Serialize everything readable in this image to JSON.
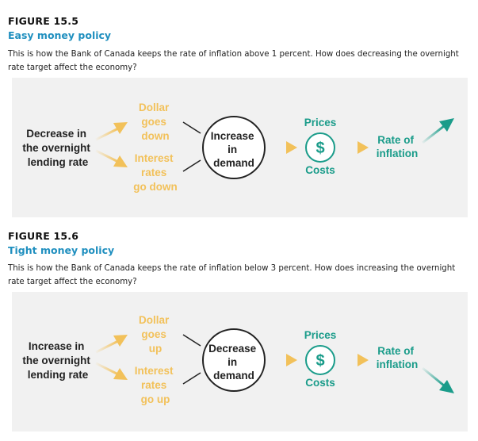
{
  "figures": [
    {
      "label": "FIGURE 15.5",
      "title": "Easy money policy",
      "description_line1": "This is how the Bank of Canada keeps the rate of inflation above 1 percent. How does decreasing the overnight",
      "description_line2": "rate target affect the economy?",
      "start_lines": [
        "Decrease in",
        "the overnight",
        "lending rate"
      ],
      "upper_lines": [
        "Dollar",
        "goes",
        "down"
      ],
      "lower_lines": [
        "Interest",
        "rates",
        "go down"
      ],
      "circle_lines": [
        "Increase",
        "in",
        "demand"
      ],
      "prices": "Prices",
      "dollar_symbol": "$",
      "costs": "Costs",
      "rate_lines": [
        "Rate of",
        "inflation"
      ],
      "inflation_direction": "up"
    },
    {
      "label": "FIGURE 15.6",
      "title": "Tight money policy",
      "description_line1": "This is how the Bank of Canada keeps the rate of inflation below 3 percent. How does increasing the overnight",
      "description_line2": "rate target affect the economy?",
      "start_lines": [
        "Increase in",
        "the overnight",
        "lending rate"
      ],
      "upper_lines": [
        "Dollar",
        "goes",
        "up"
      ],
      "lower_lines": [
        "Interest",
        "rates",
        "go up"
      ],
      "circle_lines": [
        "Decrease",
        "in",
        "demand"
      ],
      "prices": "Prices",
      "dollar_symbol": "$",
      "costs": "Costs",
      "rate_lines": [
        "Rate of",
        "inflation"
      ],
      "inflation_direction": "down"
    }
  ],
  "colors": {
    "title_blue": "#1f8fbf",
    "panel_gray": "#f1f1f1",
    "gold": "#f2c15a",
    "teal": "#1a9c8a",
    "dark": "#222222"
  }
}
